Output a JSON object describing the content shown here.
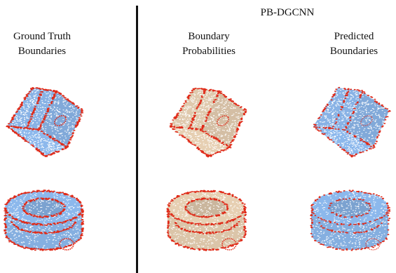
{
  "figure": {
    "method_title": "PB-DGCNN",
    "columns": [
      {
        "id": "ground_truth",
        "label_lines": [
          "Ground Truth",
          "Boundaries"
        ],
        "base_color": "#8cb8ec",
        "edge_color": "#e02a18",
        "edge_strength": 1.0
      },
      {
        "id": "probabilities",
        "label_lines": [
          "Boundary",
          "Probabilities"
        ],
        "base_color": "#e6cfb2",
        "edge_color": "#e02a18",
        "edge_strength": 0.85
      },
      {
        "id": "predicted",
        "label_lines": [
          "Predicted",
          "Boundaries"
        ],
        "base_color": "#8cb8ec",
        "edge_color": "#e02a18",
        "edge_strength": 0.45
      }
    ],
    "rows": [
      {
        "id": "cube",
        "shape": "cube-with-hole"
      },
      {
        "id": "ring",
        "shape": "ring"
      }
    ]
  }
}
